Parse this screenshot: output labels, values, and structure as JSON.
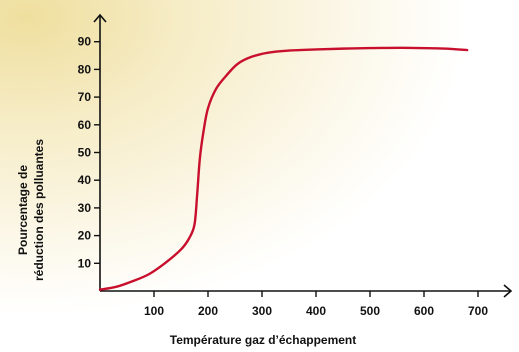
{
  "chart_data": {
    "type": "line",
    "title": "",
    "xlabel": "Température gaz d’échappement",
    "ylabel_lines": [
      "Pourcentage de",
      "réduction des polluantes"
    ],
    "xlim": [
      0,
      750
    ],
    "ylim": [
      0,
      100
    ],
    "x_ticks": [
      100,
      200,
      300,
      400,
      500,
      600,
      700
    ],
    "y_ticks": [
      10,
      20,
      30,
      40,
      50,
      60,
      70,
      80,
      90
    ],
    "grid": false,
    "series": [
      {
        "color": "#c8102e",
        "points": [
          [
            0,
            0.5
          ],
          [
            30,
            1.5
          ],
          [
            60,
            3.5
          ],
          [
            90,
            6
          ],
          [
            120,
            10
          ],
          [
            150,
            15
          ],
          [
            165,
            19
          ],
          [
            175,
            24
          ],
          [
            180,
            35
          ],
          [
            185,
            48
          ],
          [
            192,
            58
          ],
          [
            200,
            66
          ],
          [
            215,
            73
          ],
          [
            235,
            78
          ],
          [
            255,
            82
          ],
          [
            280,
            84.5
          ],
          [
            310,
            86
          ],
          [
            350,
            86.8
          ],
          [
            400,
            87.2
          ],
          [
            450,
            87.5
          ],
          [
            500,
            87.7
          ],
          [
            560,
            87.8
          ],
          [
            620,
            87.6
          ],
          [
            650,
            87.4
          ],
          [
            680,
            87.0
          ]
        ]
      }
    ]
  },
  "colors": {
    "background_glow": "#f6ecc6",
    "axis": "#111111",
    "curve": "#c8102e"
  }
}
